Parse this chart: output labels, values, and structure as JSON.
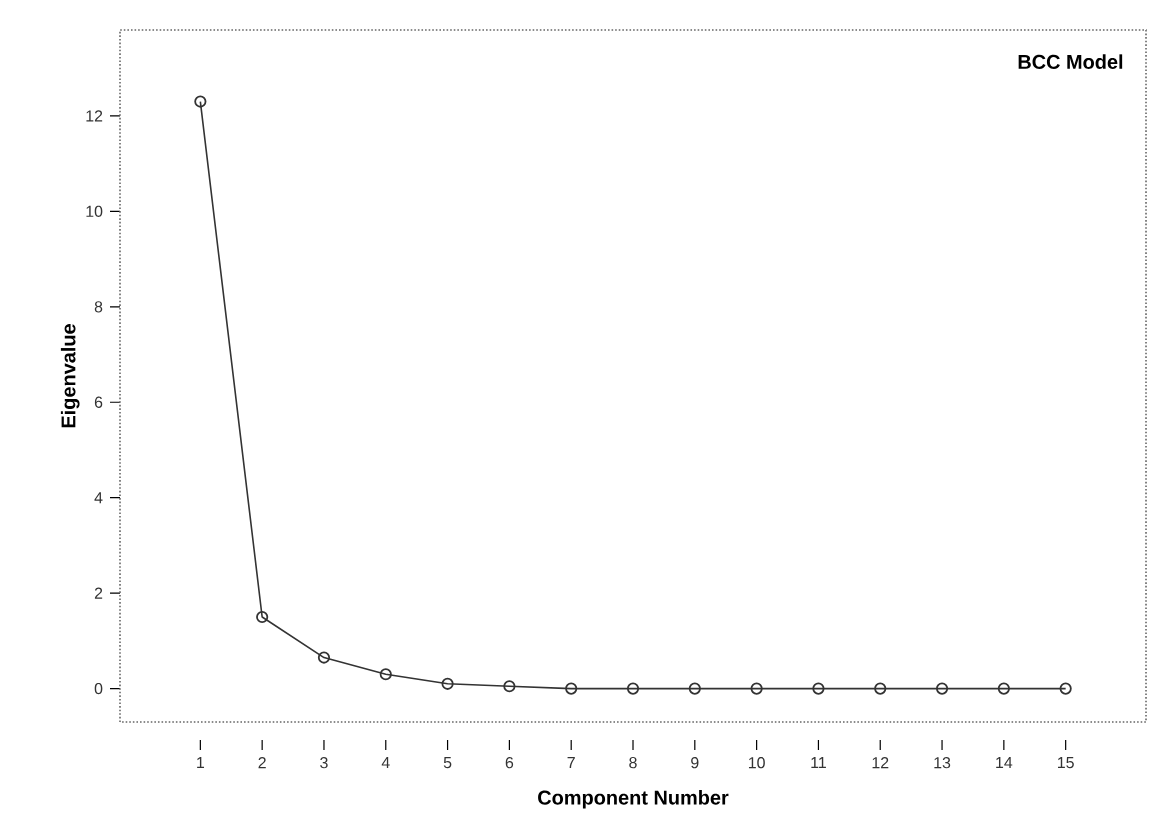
{
  "chart_data": {
    "type": "line",
    "xlabel": "Component Number",
    "ylabel": "Eigenvalue",
    "annotations": [
      "BCC Model"
    ],
    "x": [
      1,
      2,
      3,
      4,
      5,
      6,
      7,
      8,
      9,
      10,
      11,
      12,
      13,
      14,
      15
    ],
    "values": [
      12.3,
      1.5,
      0.65,
      0.3,
      0.1,
      0.05,
      0.0,
      0.0,
      0.0,
      0.0,
      0.0,
      0.0,
      0.0,
      0.0,
      0.0
    ],
    "color": "#333333",
    "marker": "circle",
    "line_style": "solid",
    "xlim": [
      -0.3,
      16.3
    ],
    "ylim": [
      -0.7,
      13.8
    ],
    "xticks": [
      1,
      2,
      3,
      4,
      5,
      6,
      7,
      8,
      9,
      10,
      11,
      12,
      13,
      14,
      15
    ],
    "yticks": [
      0,
      2,
      4,
      6,
      8,
      10,
      12
    ]
  }
}
